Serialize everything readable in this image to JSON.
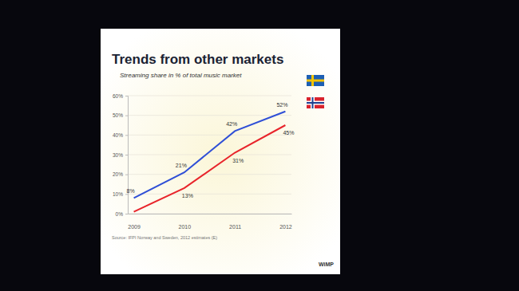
{
  "chart_data": {
    "type": "line",
    "title": "Trends from other markets",
    "subtitle": "Streaming share in % of total music market",
    "categories": [
      "2009",
      "2010",
      "2011",
      "2012"
    ],
    "series": [
      {
        "color": "#2f4fd6",
        "values": [
          8,
          21,
          42,
          52
        ],
        "value_labels": [
          "8%",
          "21%",
          "42%",
          "52%"
        ]
      },
      {
        "color": "#e8242b",
        "values": [
          1,
          13,
          31,
          45
        ],
        "value_labels": [
          null,
          "13%",
          "31%",
          "45%"
        ]
      }
    ],
    "ylim": [
      0,
      60
    ],
    "yticks": [
      {
        "value": 0,
        "label": "0%"
      },
      {
        "value": 10,
        "label": "10%"
      },
      {
        "value": 20,
        "label": "20%"
      },
      {
        "value": 30,
        "label": "30%"
      },
      {
        "value": 40,
        "label": "40%"
      },
      {
        "value": 50,
        "label": "50%"
      },
      {
        "value": 60,
        "label": "60%"
      }
    ],
    "grid": true,
    "data_labels": true,
    "source": "Source: IFPI Norway and Sweden, 2012 estimates (E)",
    "annotations": [
      "WiMP"
    ]
  }
}
